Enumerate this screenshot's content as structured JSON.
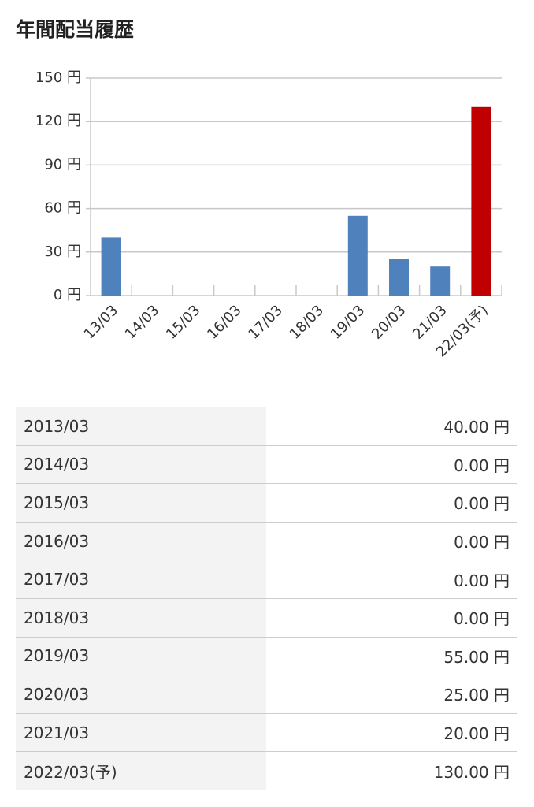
{
  "header": {
    "title": "年間配当履歴"
  },
  "chart_data": {
    "type": "bar",
    "categories": [
      "13/03",
      "14/03",
      "15/03",
      "16/03",
      "17/03",
      "18/03",
      "19/03",
      "20/03",
      "21/03",
      "22/03(予)"
    ],
    "values": [
      40,
      0,
      0,
      0,
      0,
      0,
      55,
      25,
      20,
      130
    ],
    "colors": [
      "#4f81bd",
      "#4f81bd",
      "#4f81bd",
      "#4f81bd",
      "#4f81bd",
      "#4f81bd",
      "#4f81bd",
      "#4f81bd",
      "#4f81bd",
      "#c00000"
    ],
    "ylim": [
      0,
      150
    ],
    "yticks": [
      {
        "value": 0,
        "label": "0 円"
      },
      {
        "value": 30,
        "label": "30 円"
      },
      {
        "value": 60,
        "label": "60 円"
      },
      {
        "value": 90,
        "label": "90 円"
      },
      {
        "value": 120,
        "label": "120 円"
      },
      {
        "value": 150,
        "label": "150 円"
      }
    ],
    "grid": true
  },
  "table": {
    "rows": [
      [
        "2013/03",
        "40.00 円"
      ],
      [
        "2014/03",
        "0.00 円"
      ],
      [
        "2015/03",
        "0.00 円"
      ],
      [
        "2016/03",
        "0.00 円"
      ],
      [
        "2017/03",
        "0.00 円"
      ],
      [
        "2018/03",
        "0.00 円"
      ],
      [
        "2019/03",
        "55.00 円"
      ],
      [
        "2020/03",
        "25.00 円"
      ],
      [
        "2021/03",
        "20.00 円"
      ],
      [
        "2022/03(予)",
        "130.00 円"
      ]
    ]
  }
}
